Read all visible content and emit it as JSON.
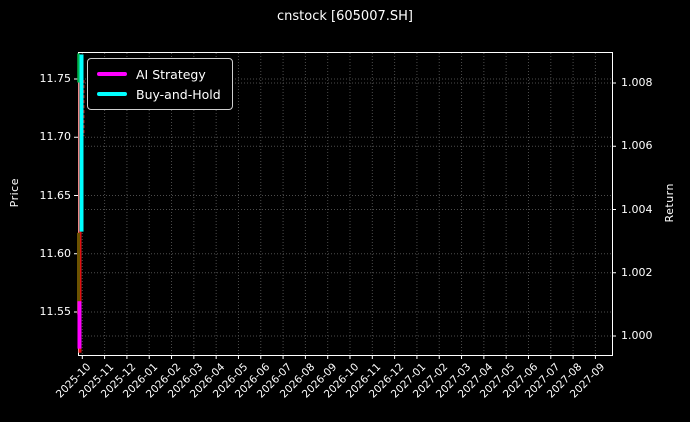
{
  "title": "cnstock [605007.SH]",
  "legend": {
    "position": "upper left",
    "items": [
      {
        "label": "AI Strategy",
        "color": "#ff00ff",
        "swatch": "magenta-line-icon"
      },
      {
        "label": "Buy-and-Hold",
        "color": "#00ffff",
        "swatch": "cyan-line-icon"
      }
    ]
  },
  "colors": {
    "background": "#000000",
    "text": "#ffffff",
    "grid": "#4c4c4c",
    "spine": "#ffffff",
    "ai_strategy": "#ff00ff",
    "buy_and_hold": "#00ffff",
    "candle_up": "#e01010",
    "candle_down": "#00b44c"
  },
  "chart_data": {
    "type": "line",
    "subtype": "backtest price candlesticks + dual-axis return lines",
    "title": "cnstock [605007.SH]",
    "ylabel_left": "Price",
    "ylabel_right": "Return",
    "grid": "dotted, both axes",
    "legend_position": "upper left",
    "left_axis": {
      "ticks": [
        11.55,
        11.6,
        11.65,
        11.7,
        11.75
      ],
      "range": [
        11.513,
        11.773
      ]
    },
    "right_axis": {
      "ticks": [
        1.0,
        1.002,
        1.004,
        1.006,
        1.008
      ],
      "range": [
        0.9995,
        1.0092
      ]
    },
    "x_tick_labels": [
      "2025-10",
      "2025-11",
      "2025-12",
      "2026-01",
      "2026-02",
      "2026-03",
      "2026-04",
      "2026-05",
      "2026-06",
      "2026-07",
      "2026-08",
      "2026-09",
      "2026-10",
      "2026-11",
      "2026-12",
      "2027-01",
      "2027-02",
      "2027-03",
      "2027-04",
      "2027-05",
      "2027-06",
      "2027-07",
      "2027-08",
      "2027-09"
    ],
    "x_note": "axis spans 24 months but all plotted data is compressed into a ~6px strip at the first tick (2025-10)",
    "series": [
      {
        "name": "AI Strategy",
        "axis": "right",
        "color": "#ff00ff",
        "estimated": true,
        "x": [
          "2025-10-01",
          "2025-10-02",
          "2025-10-03",
          "2025-10-06",
          "2025-10-07",
          "2025-10-08"
        ],
        "values": [
          1.0,
          1.0005,
          1.0011,
          1.0002,
          0.9997,
          1.0004
        ]
      },
      {
        "name": "Buy-and-Hold",
        "axis": "right",
        "color": "#00ffff",
        "estimated": true,
        "x": [
          "2025-10-01",
          "2025-10-02",
          "2025-10-03",
          "2025-10-06",
          "2025-10-07",
          "2025-10-08"
        ],
        "values": [
          1.0,
          1.0045,
          1.0089,
          1.007,
          1.0033,
          1.0055
        ]
      },
      {
        "name": "Price candlesticks",
        "axis": "left",
        "type": "candlestick",
        "up_color": "#e01010",
        "down_color": "#00b44c",
        "estimated": true,
        "ohlc": [
          [
            11.62,
            11.68,
            11.55,
            11.66
          ],
          [
            11.66,
            11.755,
            11.62,
            11.7
          ],
          [
            11.7,
            11.772,
            11.65,
            11.66
          ],
          [
            11.66,
            11.68,
            11.548,
            11.6
          ],
          [
            11.6,
            11.65,
            11.515,
            11.62
          ],
          [
            11.62,
            11.65,
            11.56,
            11.63
          ]
        ]
      }
    ],
    "compressed_strip": {
      "segments": [
        {
          "name": "red-candle-wick",
          "axis": "price",
          "from": 11.755,
          "to": 11.515,
          "color": "#e01010",
          "x_offset": 2,
          "width": 3,
          "dashed": false
        },
        {
          "name": "red-candle-dashes",
          "axis": "price",
          "from": 11.749,
          "to": 11.701,
          "color": "#cc1010",
          "x_offset": 5.5,
          "width": 2,
          "dashed": true
        },
        {
          "name": "green-candle",
          "axis": "price",
          "from": 11.772,
          "to": 11.747,
          "color": "#00b44c",
          "x_offset": 0.5,
          "width": 2.5,
          "dashed": false
        },
        {
          "name": "dark-candle-body",
          "axis": "price",
          "from": 11.618,
          "to": 11.548,
          "color": "#6b5200",
          "x_offset": 0.5,
          "width": 3,
          "dashed": false
        },
        {
          "name": "buy-and-hold-compressed",
          "axis": "return",
          "from": 1.0089,
          "to": 1.0033,
          "color": "#00ffff",
          "x_offset": 3.5,
          "width": 4,
          "dashed": false
        },
        {
          "name": "ai-strategy-compressed",
          "axis": "return",
          "from": 1.0011,
          "to": 0.9996,
          "color": "#ff00ff",
          "x_offset": 1.5,
          "width": 4,
          "dashed": false
        }
      ]
    }
  }
}
